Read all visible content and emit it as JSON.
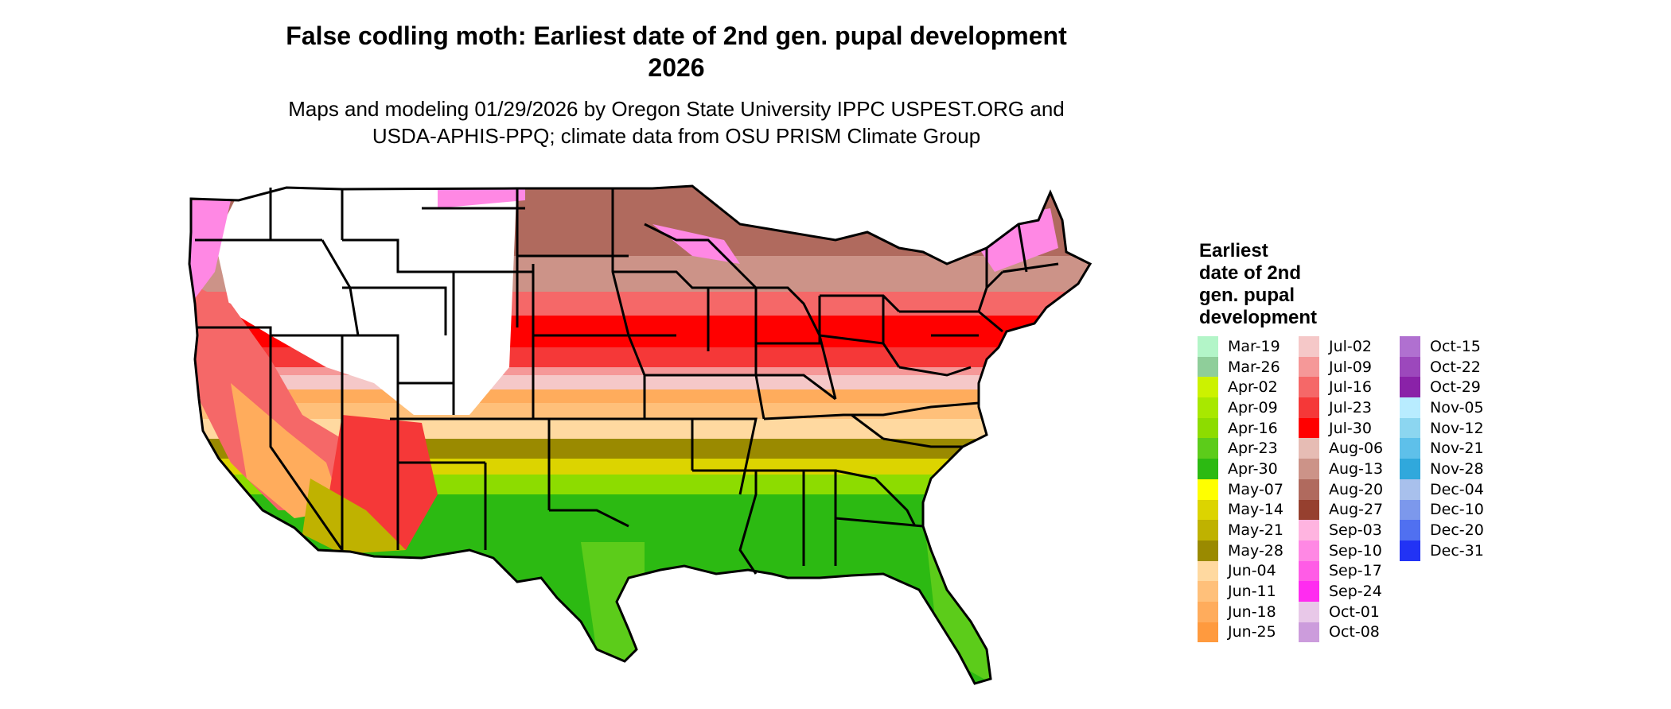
{
  "title_line1": "False codling moth: Earliest date of 2nd gen. pupal development",
  "title_line2": "2026",
  "subtitle_line1": "Maps and modeling 01/29/2026 by Oregon State University IPPC USPEST.ORG and",
  "subtitle_line2": "USDA-APHIS-PPQ; climate data from OSU PRISM Climate Group",
  "legend": {
    "title_lines": [
      "Earliest",
      "date of 2nd",
      "gen. pupal",
      "development"
    ],
    "columns": [
      [
        {
          "label": "Mar-19",
          "color": "#b3f5c8"
        },
        {
          "label": "Mar-26",
          "color": "#8fce9a"
        },
        {
          "label": "Apr-02",
          "color": "#ccf200"
        },
        {
          "label": "Apr-09",
          "color": "#a8e800"
        },
        {
          "label": "Apr-16",
          "color": "#8ddc00"
        },
        {
          "label": "Apr-23",
          "color": "#5ccc1a"
        },
        {
          "label": "Apr-30",
          "color": "#2cba12"
        },
        {
          "label": "May-07",
          "color": "#ffff00"
        },
        {
          "label": "May-14",
          "color": "#dcd400"
        },
        {
          "label": "May-21",
          "color": "#bfb200"
        },
        {
          "label": "May-28",
          "color": "#9a8a00"
        },
        {
          "label": "Jun-04",
          "color": "#ffd9a0"
        },
        {
          "label": "Jun-11",
          "color": "#ffc07a"
        },
        {
          "label": "Jun-18",
          "color": "#ffac5c"
        },
        {
          "label": "Jun-25",
          "color": "#ff9a3e"
        }
      ],
      [
        {
          "label": "Jul-02",
          "color": "#f5c8c8"
        },
        {
          "label": "Jul-09",
          "color": "#f59898"
        },
        {
          "label": "Jul-16",
          "color": "#f56868"
        },
        {
          "label": "Jul-23",
          "color": "#f53838"
        },
        {
          "label": "Jul-30",
          "color": "#ff0000"
        },
        {
          "label": "Aug-06",
          "color": "#e6bcb4"
        },
        {
          "label": "Aug-13",
          "color": "#cc9388"
        },
        {
          "label": "Aug-20",
          "color": "#b06a5e"
        },
        {
          "label": "Aug-27",
          "color": "#96402f"
        },
        {
          "label": "Sep-03",
          "color": "#ffb4e0"
        },
        {
          "label": "Sep-10",
          "color": "#ff88e4"
        },
        {
          "label": "Sep-17",
          "color": "#ff5ce6"
        },
        {
          "label": "Sep-24",
          "color": "#ff2cf0"
        },
        {
          "label": "Oct-01",
          "color": "#e8c8e8"
        },
        {
          "label": "Oct-08",
          "color": "#cc9cdc"
        }
      ],
      [
        {
          "label": "Oct-15",
          "color": "#b070d0"
        },
        {
          "label": "Oct-22",
          "color": "#9c48bc"
        },
        {
          "label": "Oct-29",
          "color": "#8a22a8"
        },
        {
          "label": "Nov-05",
          "color": "#b8ecff"
        },
        {
          "label": "Nov-12",
          "color": "#8cd6f0"
        },
        {
          "label": "Nov-21",
          "color": "#5ec0ea"
        },
        {
          "label": "Nov-28",
          "color": "#30a8dc"
        },
        {
          "label": "Dec-04",
          "color": "#a8c0ec"
        },
        {
          "label": "Dec-10",
          "color": "#7c98ec"
        },
        {
          "label": "Dec-20",
          "color": "#5070f0"
        },
        {
          "label": "Dec-31",
          "color": "#2233f5"
        }
      ]
    ]
  },
  "colors": {
    "border": "#000000",
    "background": "#ffffff"
  }
}
